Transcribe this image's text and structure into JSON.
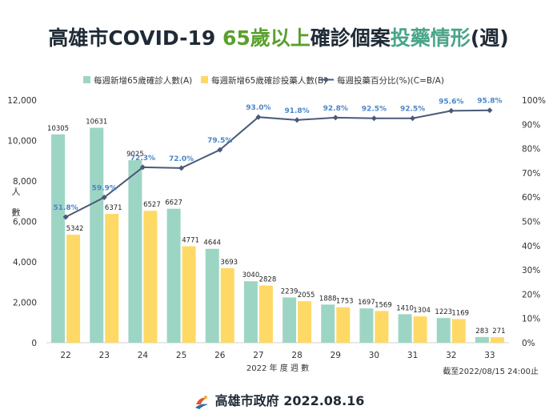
{
  "title": {
    "part1": "高雄市COVID-19 ",
    "part2": "65歲以上",
    "part3": "確診個案",
    "part4": "投藥情形",
    "part5": "(週)"
  },
  "footer": {
    "org": "高雄市政府",
    "date": "2022.08.16"
  },
  "note": "截至2022/08/15 24:00止",
  "colors": {
    "bar_a": "#9dd5c5",
    "bar_b": "#ffd966",
    "line": "#4a5a79",
    "line_label": "#4a86c8",
    "title_green": "#5aa02c",
    "title_teal": "#4aa58a"
  },
  "chart_data": {
    "type": "bar",
    "categories": [
      "22",
      "23",
      "24",
      "25",
      "26",
      "27",
      "28",
      "29",
      "30",
      "31",
      "32",
      "33"
    ],
    "series": [
      {
        "name": "每週新增65歲確診人數(A)",
        "type": "bar",
        "axis": "left",
        "values": [
          10305,
          10631,
          9025,
          6627,
          4644,
          3040,
          2239,
          1888,
          1697,
          1410,
          1223,
          283
        ]
      },
      {
        "name": "每週新增65歲確診投藥人數(B)",
        "type": "bar",
        "axis": "left",
        "values": [
          5342,
          6371,
          6527,
          4771,
          3693,
          2828,
          2055,
          1753,
          1569,
          1304,
          1169,
          271
        ]
      },
      {
        "name": "每週投藥百分比(%)(C=B/A)",
        "type": "line",
        "axis": "right",
        "values": [
          51.8,
          59.9,
          72.3,
          72.0,
          79.5,
          93.0,
          91.8,
          92.8,
          92.5,
          92.5,
          95.6,
          95.8
        ],
        "labels": [
          "51.8%",
          "59.9%",
          "72.3%",
          "72.0%",
          "79.5%",
          "93.0%",
          "91.8%",
          "92.8%",
          "92.5%",
          "92.5%",
          "95.6%",
          "95.8%"
        ]
      }
    ],
    "xlabel": "2022 年 度 週 數",
    "ylabel": "人數",
    "ylim": [
      0,
      12000
    ],
    "yticks": [
      "0",
      "2,000",
      "4,000",
      "6,000",
      "8,000",
      "10,000",
      "12,000"
    ],
    "y2lim": [
      0,
      100
    ],
    "y2ticks": [
      "0%",
      "10%",
      "20%",
      "30%",
      "40%",
      "50%",
      "60%",
      "70%",
      "80%",
      "90%",
      "100%"
    ],
    "grid": false,
    "legend_position": "top"
  }
}
